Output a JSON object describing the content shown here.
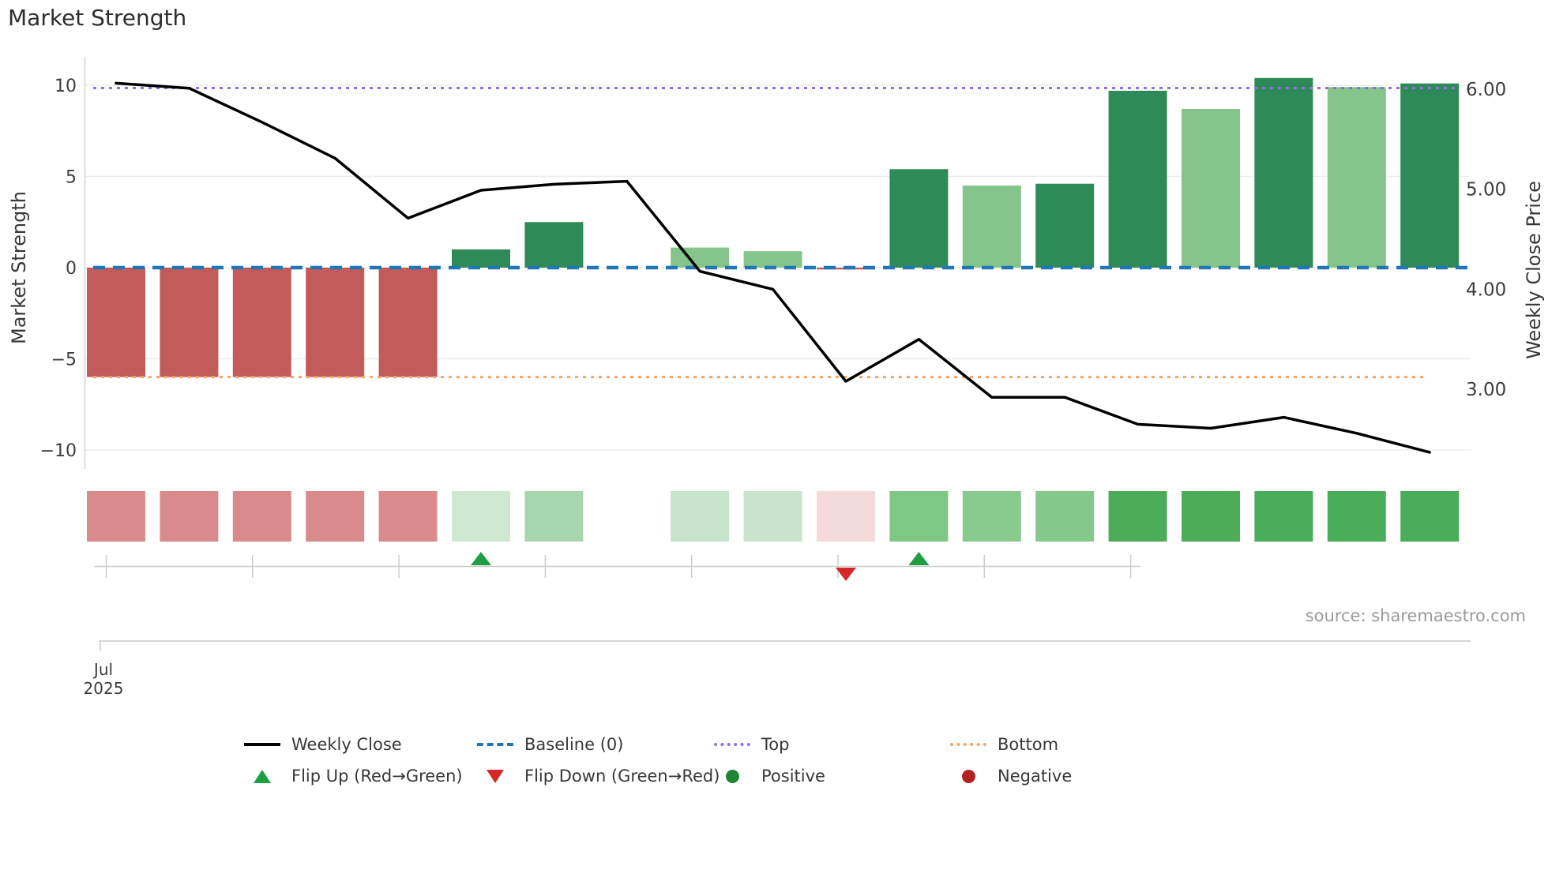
{
  "chart_data": {
    "type": "bar",
    "title": "Market Strength",
    "weeks": [
      1,
      2,
      3,
      4,
      5,
      6,
      7,
      8,
      9,
      10,
      11,
      12,
      13,
      14,
      15,
      16,
      17,
      18,
      19
    ],
    "missing_week": 8,
    "left_axis": {
      "label": "Market Strength",
      "tick_values": [
        10,
        5,
        0,
        -5,
        -10
      ],
      "tick_labels": [
        "10",
        "5",
        "0",
        "−5",
        "−10"
      ],
      "range": [
        -11.3,
        11.7
      ]
    },
    "right_axis": {
      "label": "Weekly Close Price",
      "tick_values": [
        6,
        5,
        4,
        3
      ],
      "tick_labels": [
        "6.00",
        "5.00",
        "4.00",
        "3.00"
      ]
    },
    "x_axis": {
      "first_tick_label": "Jul 2025",
      "grid": false
    },
    "series": [
      {
        "name": "Market Strength",
        "type": "bar",
        "axis": "left",
        "values": [
          -6,
          -6,
          -6,
          -6,
          -6,
          1.0,
          2.5,
          null,
          1.1,
          0.9,
          -0.1,
          5.4,
          4.5,
          4.6,
          9.7,
          8.7,
          10.4,
          9.9,
          10.1
        ],
        "bar_colors": [
          "#c45b5b",
          "#c45b5b",
          "#c45b5b",
          "#c45b5b",
          "#c45b5b",
          "#2e8b57",
          "#2e8b57",
          null,
          "#85c58b",
          "#85c58b",
          "#c45b5b",
          "#2e8b57",
          "#85c58b",
          "#2e8b57",
          "#2e8b57",
          "#85c58b",
          "#2e8b57",
          "#85c58b",
          "#2e8b57"
        ]
      },
      {
        "name": "Weekly Close",
        "type": "line",
        "axis": "right",
        "color": "#000000",
        "values": [
          6.06,
          6.01,
          5.67,
          5.31,
          4.71,
          4.99,
          5.05,
          5.08,
          4.18,
          4.0,
          3.08,
          3.5,
          2.92,
          2.92,
          2.65,
          2.61,
          2.72,
          2.56,
          2.37
        ]
      }
    ],
    "reference_lines": [
      {
        "name": "Baseline (0)",
        "left_value": 0,
        "color": "#2077b4",
        "style": "dashed"
      },
      {
        "name": "Top",
        "left_value": 9.85,
        "color": "#9370db",
        "style": "dotted"
      },
      {
        "name": "Bottom",
        "left_value": -6.0,
        "color": "#f2a566",
        "style": "dotted"
      }
    ],
    "heatmap_strip": {
      "cell_colors": [
        "#d98b8b",
        "#d98b8b",
        "#d98b8b",
        "#d98b8b",
        "#d98b8b",
        "#cfe8d2",
        "#a8d6ac",
        null,
        "#c6e3cb",
        "#cae4cd",
        "#f5dadc",
        "#7ec785",
        "#89cb8f",
        "#86c98c",
        "#4cac58",
        "#4cac58",
        "#4aad5a",
        "#4aad5a",
        "#4aad5a"
      ]
    },
    "flip_markers": {
      "up_weeks": [
        6,
        12
      ],
      "down_weeks": [
        11
      ],
      "up_color": "#1f9e44",
      "down_color": "#d62728"
    },
    "grid_color": "#ededed",
    "spine_color": "#d9d9d9",
    "marker_axis_color": "#cccccc"
  },
  "annotations": {
    "source_text": "source: sharemaestro.com"
  },
  "legend": {
    "rows": [
      [
        {
          "swatch": "line-solid",
          "color": "#000000",
          "label": "Weekly Close"
        },
        {
          "swatch": "line-dashed",
          "color": "#2077b4",
          "label": "Baseline (0)"
        },
        {
          "swatch": "line-dotted",
          "color": "#9370db",
          "label": "Top"
        },
        {
          "swatch": "line-dotted",
          "color": "#f2a566",
          "label": "Bottom"
        }
      ],
      [
        {
          "swatch": "triangle-up",
          "color": "#1f9e44",
          "label": "Flip Up (Red→Green)"
        },
        {
          "swatch": "triangle-down",
          "color": "#d62728",
          "label": "Flip Down (Green→Red)"
        },
        {
          "swatch": "dot",
          "color": "#1d8533",
          "label": "Positive"
        },
        {
          "swatch": "dot",
          "color": "#b22222",
          "label": "Negative"
        }
      ]
    ]
  }
}
